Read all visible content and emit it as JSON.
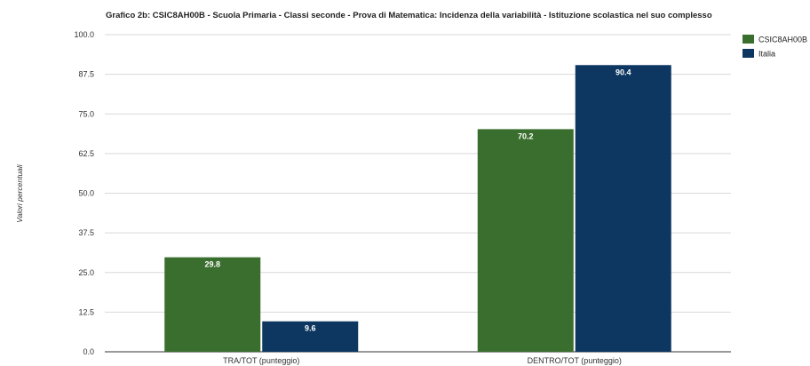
{
  "chart_data": {
    "type": "bar",
    "title": "Grafico 2b: CSIC8AH00B - Scuola Primaria - Classi seconde - Prova di Matematica: Incidenza della variabilità - Istituzione scolastica nel suo complesso",
    "ylabel": "Valori percentuali",
    "xlabel": "",
    "categories": [
      "TRA/TOT (punteggio)",
      "DENTRO/TOT (punteggio)"
    ],
    "series": [
      {
        "name": "CSIC8AH00B",
        "values": [
          29.8,
          70.2
        ],
        "color": "#3a6e2e"
      },
      {
        "name": "Italia",
        "values": [
          9.6,
          90.4
        ],
        "color": "#0d3660"
      }
    ],
    "ylim": [
      0,
      100
    ],
    "yticks": [
      "0.0",
      "12.5",
      "25.0",
      "37.5",
      "50.0",
      "62.5",
      "75.0",
      "87.5",
      "100.0"
    ],
    "data_labels": true,
    "grid": true,
    "legend": "top-right"
  }
}
